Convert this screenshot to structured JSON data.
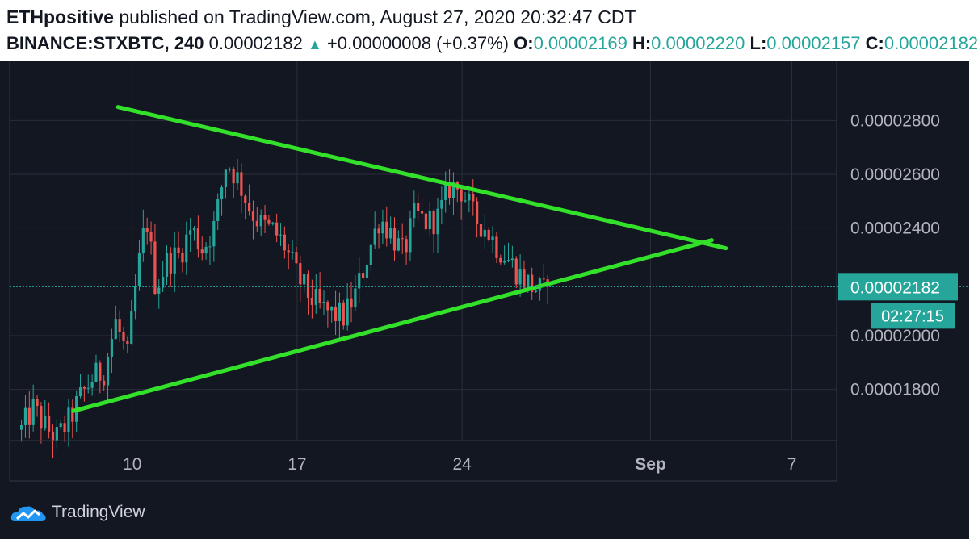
{
  "header": {
    "author": "ETHpositive",
    "published_text": "published on TradingView.com, August 27, 2020 20:32:47 CDT",
    "symbol": "BINANCE:STXBTC, 240",
    "last": "0.00002182",
    "change": "+0.00000008 (+0.37%)",
    "o_label": "O:",
    "o_value": "0.00002169",
    "h_label": "H:",
    "h_value": "0.00002220",
    "l_label": "L:",
    "l_value": "0.00002157",
    "c_label": "C:",
    "c_value": "0.00002182"
  },
  "footer": {
    "brand": "TradingView"
  },
  "colors": {
    "up": "#26a69a",
    "down": "#ef5350",
    "trendline": "#33e02a",
    "background": "#131722",
    "grid": "#2a2e39",
    "price_tag": "#26a69a"
  },
  "chart_data": {
    "type": "candlestick",
    "x_ticks": [
      "10",
      "17",
      "24",
      "Sep",
      "7"
    ],
    "x_tick_days": [
      10,
      17,
      24,
      32,
      38
    ],
    "y_ticks": [
      "0.00002800",
      "0.00002600",
      "0.00002400",
      "0.00002000",
      "0.00001800"
    ],
    "y_tick_values": [
      2.8e-05,
      2.6e-05,
      2.4e-05,
      2e-05,
      1.8e-05
    ],
    "ylim": [
      1.61e-05,
      2.99e-05
    ],
    "xlim_days": [
      4.8,
      39.9
    ],
    "current_price": "0.00002182",
    "current_price_value": 2.182e-05,
    "countdown": "02:27:15",
    "x_unit": "days from August 1, 2020 (4h bars)",
    "trendlines": [
      {
        "name": "upper resistance",
        "from": {
          "day": 9.4,
          "price": 2.85e-05
        },
        "to": {
          "day": 35.2,
          "price": 2.325e-05
        }
      },
      {
        "name": "lower support",
        "from": {
          "day": 7.5,
          "price": 1.72e-05
        },
        "to": {
          "day": 34.6,
          "price": 2.355e-05
        }
      }
    ],
    "anchors": [
      [
        5.3,
        1.65e-05
      ],
      [
        5.8,
        1.73e-05
      ],
      [
        6.3,
        1.66e-05
      ],
      [
        6.8,
        1.62e-05
      ],
      [
        7.3,
        1.68e-05
      ],
      [
        7.8,
        1.77e-05
      ],
      [
        8.3,
        1.84e-05
      ],
      [
        8.8,
        1.87e-05
      ],
      [
        9.3,
        2.05e-05
      ],
      [
        9.8,
        1.92e-05
      ],
      [
        10.2,
        2.22e-05
      ],
      [
        10.6,
        2.44e-05
      ],
      [
        11.0,
        2.18e-05
      ],
      [
        11.5,
        2.28e-05
      ],
      [
        12.0,
        2.3e-05
      ],
      [
        12.5,
        2.4e-05
      ],
      [
        13.0,
        2.32e-05
      ],
      [
        13.5,
        2.41e-05
      ],
      [
        14.0,
        2.65e-05
      ],
      [
        14.5,
        2.58e-05
      ],
      [
        15.0,
        2.47e-05
      ],
      [
        15.5,
        2.41e-05
      ],
      [
        16.0,
        2.39e-05
      ],
      [
        16.5,
        2.33e-05
      ],
      [
        17.0,
        2.22e-05
      ],
      [
        17.5,
        2.15e-05
      ],
      [
        18.0,
        2.1e-05
      ],
      [
        18.5,
        2.08e-05
      ],
      [
        19.0,
        2.07e-05
      ],
      [
        19.5,
        2.16e-05
      ],
      [
        20.0,
        2.3e-05
      ],
      [
        20.5,
        2.44e-05
      ],
      [
        21.0,
        2.38e-05
      ],
      [
        21.5,
        2.3e-05
      ],
      [
        22.0,
        2.45e-05
      ],
      [
        22.5,
        2.42e-05
      ],
      [
        23.0,
        2.44e-05
      ],
      [
        23.5,
        2.56e-05
      ],
      [
        24.0,
        2.54e-05
      ],
      [
        24.5,
        2.44e-05
      ],
      [
        25.0,
        2.4e-05
      ],
      [
        25.5,
        2.33e-05
      ],
      [
        26.0,
        2.28e-05
      ],
      [
        26.5,
        2.22e-05
      ],
      [
        27.0,
        2.18e-05
      ],
      [
        27.5,
        2.16e-05
      ],
      [
        27.75,
        2.182e-05
      ]
    ]
  }
}
